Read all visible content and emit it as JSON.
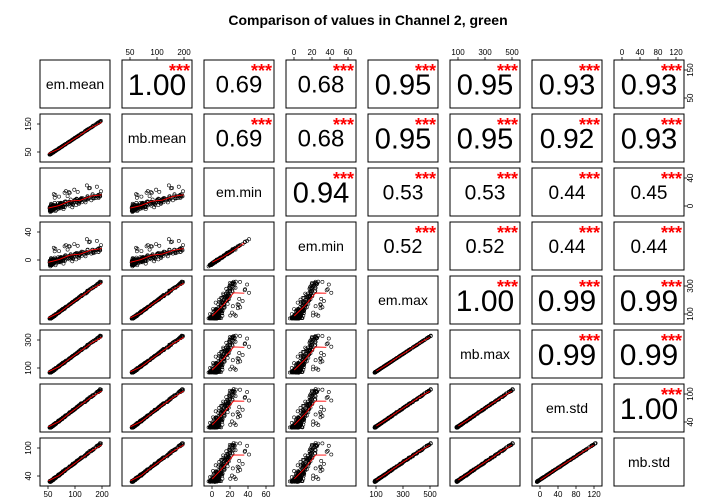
{
  "chart_data": {
    "type": "scatter",
    "title": "Comparison of values in Channel 2, green",
    "variables": [
      "em.mean",
      "mb.mean",
      "em.min",
      "em.min",
      "em.max",
      "mb.max",
      "em.std",
      "mb.std"
    ],
    "correlation_labels": [
      [
        "",
        "1.00",
        "0.69",
        "0.68",
        "0.95",
        "0.95",
        "0.93",
        "0.93"
      ],
      [
        "",
        "",
        "0.69",
        "0.68",
        "0.95",
        "0.95",
        "0.92",
        "0.93"
      ],
      [
        "",
        "",
        "",
        "0.94",
        "0.53",
        "0.53",
        "0.44",
        "0.45"
      ],
      [
        "",
        "",
        "",
        "",
        "0.52",
        "0.52",
        "0.44",
        "0.44"
      ],
      [
        "",
        "",
        "",
        "",
        "",
        "1.00",
        "0.99",
        "0.99"
      ],
      [
        "",
        "",
        "",
        "",
        "",
        "",
        "0.99",
        "0.99"
      ],
      [
        "",
        "",
        "",
        "",
        "",
        "",
        "",
        "1.00"
      ],
      [
        "",
        "",
        "",
        "",
        "",
        "",
        "",
        ""
      ]
    ],
    "significance": "***",
    "ranges": [
      [
        15,
        230
      ],
      [
        15,
        230
      ],
      [
        0,
        75
      ],
      [
        0,
        75
      ],
      [
        30,
        520
      ],
      [
        30,
        520
      ],
      [
        0,
        130
      ],
      [
        0,
        130
      ]
    ],
    "top_axis_ticks": {
      "1": [
        "50",
        "100",
        "200"
      ],
      "3": [
        "0",
        "20",
        "40",
        "60"
      ],
      "5": [
        "100",
        "300",
        "500"
      ],
      "7": [
        "0",
        "40",
        "80",
        "120"
      ]
    },
    "bottom_axis_ticks": {
      "0": [
        "50",
        "100",
        "200"
      ],
      "2": [
        "0",
        "20",
        "40",
        "60"
      ],
      "4": [
        "100",
        "300",
        "500"
      ],
      "6": [
        "0",
        "40",
        "80",
        "120"
      ]
    },
    "left_axis_ticks": {
      "1": [
        "50",
        "150"
      ],
      "3": [
        "0",
        "40"
      ],
      "5": [
        "100",
        "300"
      ],
      "7": [
        "40",
        "100"
      ]
    },
    "right_axis_ticks": {
      "0": [
        "50",
        "150"
      ],
      "2": [
        "0",
        "40"
      ],
      "4": [
        "100",
        "300"
      ],
      "6": [
        "40",
        "100"
      ]
    },
    "colors": {
      "points": "#000000",
      "fit_line": "#ff0000",
      "stars": "#ff0000"
    }
  }
}
